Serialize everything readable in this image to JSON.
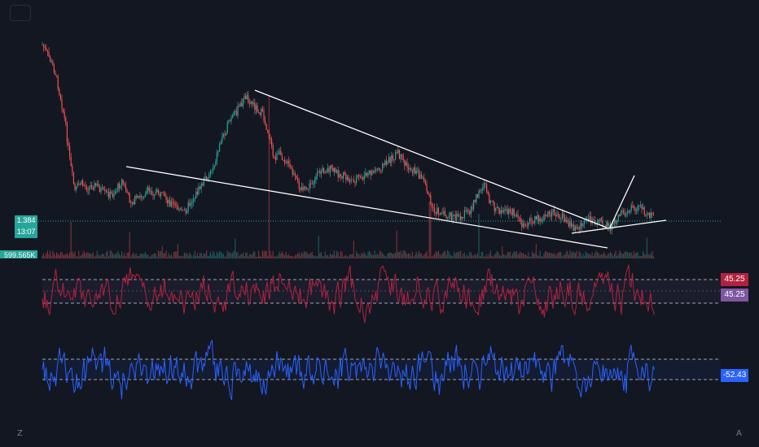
{
  "chart_data": [
    {
      "type": "candlestick",
      "title": "",
      "last_price": "1.384",
      "countdown": "13:07",
      "volume_label": "599.565K",
      "trend_lines": "white trend lines forming a falling wedge",
      "colors": {
        "up": "#26a69a",
        "down": "#ef5350",
        "lines": "#ffffff",
        "price_line": "#26a69a"
      }
    },
    {
      "type": "line",
      "series": [
        {
          "name": "",
          "color": "#b2223f"
        }
      ],
      "last_value": "45.25",
      "signal_value": "45.25",
      "tag_colors": [
        "#b2223f",
        "#7e57a2"
      ]
    },
    {
      "type": "line",
      "series": [
        {
          "name": "",
          "color": "#2962ff"
        }
      ],
      "last_value": "-52.43",
      "tag_color": "#2962ff"
    }
  ],
  "ui": {
    "corner_left": "Z",
    "corner_right": "A",
    "top_button_icon": "square-icon"
  }
}
